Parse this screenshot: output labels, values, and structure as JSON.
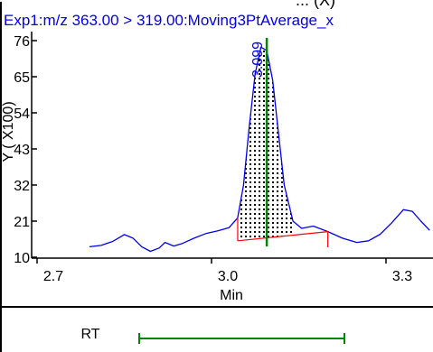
{
  "chart_data": {
    "type": "line",
    "top_title_fragment": "... (X)",
    "title": "Exp1:m/z 363.00 > 319.00:Moving3PtAverage_x",
    "xlabel": "Min",
    "ylabel": "Y ( X100)",
    "xlim": [
      2.72,
      3.48
    ],
    "ylim": [
      10,
      78
    ],
    "x_ticks": [
      2.7,
      3.0,
      3.3
    ],
    "x_tick_labels": [
      "2.7",
      "3.0",
      "3.3"
    ],
    "y_ticks": [
      10,
      21,
      32,
      43,
      54,
      65,
      76
    ],
    "y_tick_labels": [
      "10",
      "21",
      "32",
      "43",
      "54",
      "65",
      "76"
    ],
    "grid": false,
    "series": [
      {
        "color": "#0000ee",
        "points": [
          [
            2.79,
            13.2
          ],
          [
            2.81,
            13.6
          ],
          [
            2.83,
            14.8
          ],
          [
            2.85,
            16.9
          ],
          [
            2.865,
            15.8
          ],
          [
            2.88,
            13.2
          ],
          [
            2.895,
            11.8
          ],
          [
            2.91,
            12.8
          ],
          [
            2.92,
            14.5
          ],
          [
            2.935,
            13.4
          ],
          [
            2.95,
            14.2
          ],
          [
            2.97,
            15.8
          ],
          [
            2.99,
            17.2
          ],
          [
            3.01,
            18.0
          ],
          [
            3.03,
            19.0
          ],
          [
            3.045,
            22.0
          ],
          [
            3.055,
            32.0
          ],
          [
            3.065,
            50.0
          ],
          [
            3.075,
            66.0
          ],
          [
            3.085,
            74.0
          ],
          [
            3.095,
            73.0
          ],
          [
            3.105,
            64.0
          ],
          [
            3.115,
            48.0
          ],
          [
            3.125,
            32.0
          ],
          [
            3.14,
            21.0
          ],
          [
            3.155,
            18.8
          ],
          [
            3.175,
            19.5
          ],
          [
            3.2,
            17.8
          ],
          [
            3.225,
            15.8
          ],
          [
            3.25,
            14.5
          ],
          [
            3.27,
            15.0
          ],
          [
            3.29,
            17.0
          ],
          [
            3.31,
            20.5
          ],
          [
            3.33,
            24.5
          ],
          [
            3.345,
            24.0
          ],
          [
            3.36,
            21.0
          ],
          [
            3.375,
            18.2
          ]
        ]
      }
    ],
    "peak": {
      "label": "3.099",
      "rt": 3.095,
      "start": 3.045,
      "end": 3.14,
      "baseline": [
        [
          3.045,
          15.0
        ],
        [
          3.2,
          17.8
        ]
      ],
      "integrated_color": "#0000ee",
      "baseline_color": "#ff0000",
      "marker_color": "#008800"
    },
    "rt_panel": {
      "label": "RT",
      "range": [
        2.79,
        3.375
      ],
      "color": "#008800"
    }
  }
}
